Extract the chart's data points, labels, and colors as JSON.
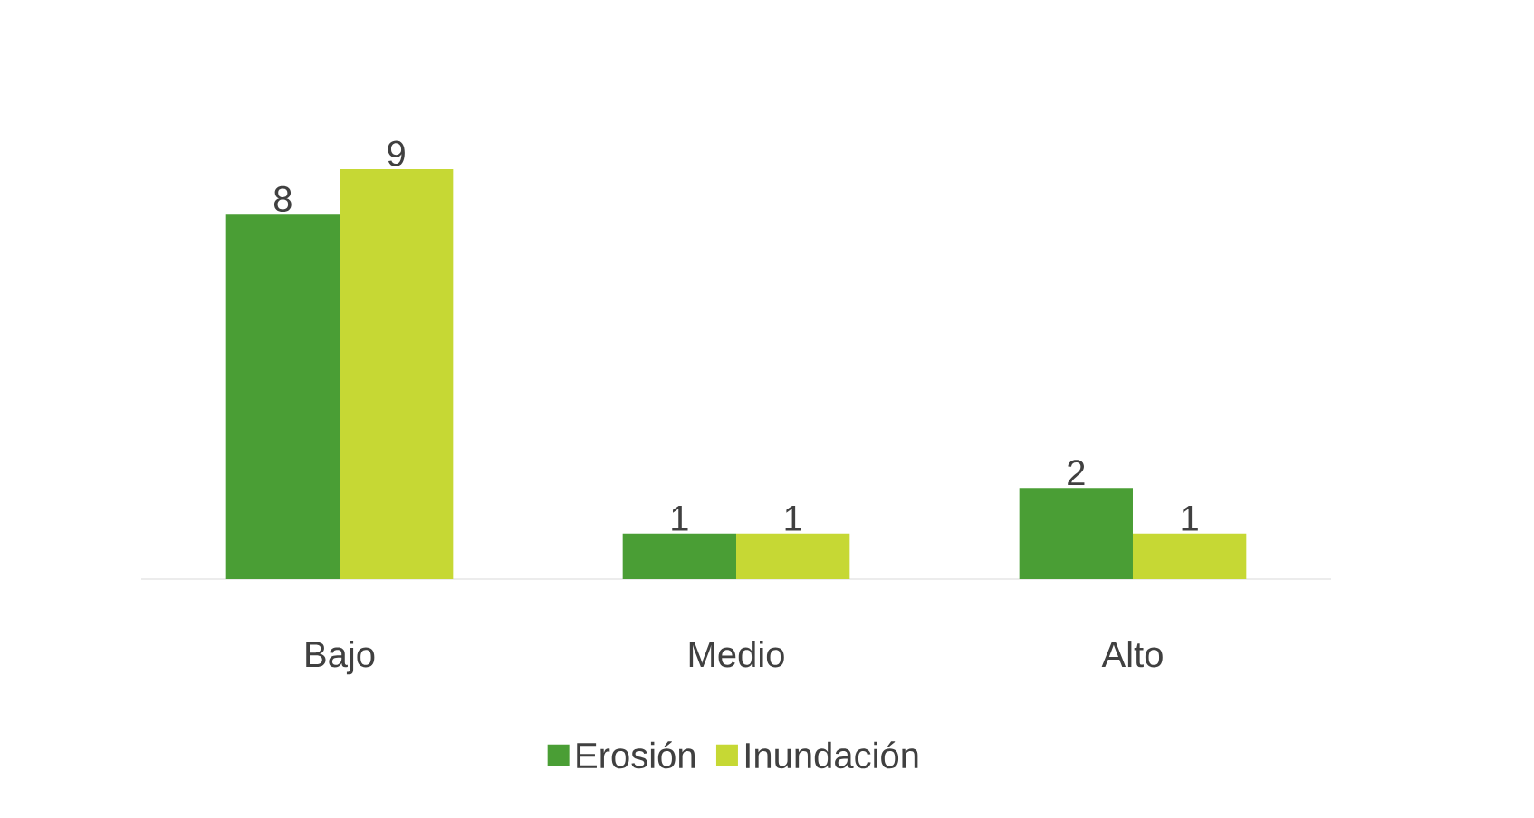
{
  "chart_data": {
    "type": "bar",
    "categories": [
      "Bajo",
      "Medio",
      "Alto"
    ],
    "series": [
      {
        "name": "Erosión",
        "color": "#4a9e35",
        "values": [
          8,
          1,
          2
        ]
      },
      {
        "name": "Inundación",
        "color": "#c6d834",
        "values": [
          9,
          1,
          1
        ]
      }
    ],
    "data_labels": true,
    "legend": "bottom"
  }
}
